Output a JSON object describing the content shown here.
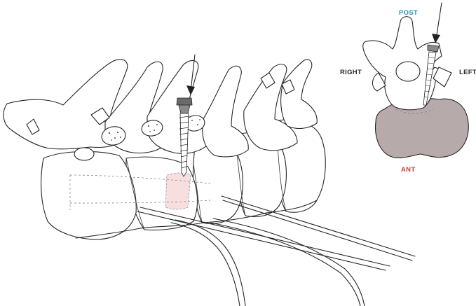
{
  "labels": {
    "post": "POST",
    "right": "RIGHT",
    "left": "LEFT",
    "ant": "ANT"
  },
  "colors": {
    "post": "#2d8fc0",
    "ant": "#c8423f",
    "text": "#2b2b2b",
    "vertebral_body_fill": "#b7aaab",
    "graft_fill": "#f7dfe0"
  },
  "icons": [
    "arrow-down-icon",
    "pedicle-screw-icon"
  ]
}
